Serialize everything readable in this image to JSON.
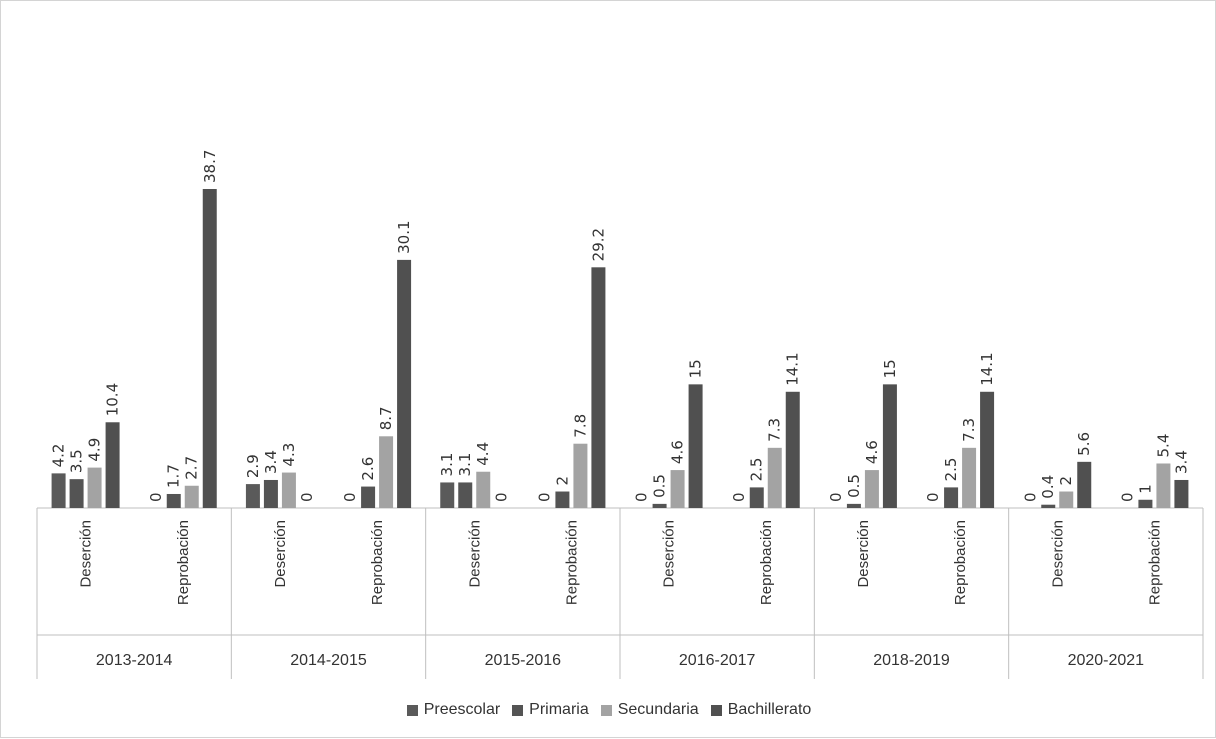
{
  "chart_data": {
    "type": "bar",
    "groups": [
      {
        "year": "2013-2014",
        "categories": [
          "Deserción",
          "Reprobación"
        ]
      },
      {
        "year": "2014-2015",
        "categories": [
          "Deserción",
          "Reprobación"
        ]
      },
      {
        "year": "2015-2016",
        "categories": [
          "Deserción",
          "Reprobación"
        ]
      },
      {
        "year": "2016-2017",
        "categories": [
          "Deserción",
          "Reprobación"
        ]
      },
      {
        "year": "2018-2019",
        "categories": [
          "Deserción",
          "Reprobación"
        ]
      },
      {
        "year": "2020-2021",
        "categories": [
          "Deserción",
          "Reprobación"
        ]
      }
    ],
    "series": [
      {
        "name": "Preescolar",
        "color": "#5a5a5a",
        "values": [
          "4.2",
          "0",
          "2.9",
          "0",
          "3.1",
          "0",
          "0",
          "0",
          "0",
          "0",
          "0",
          "0"
        ]
      },
      {
        "name": "Primaria",
        "color": "#545454",
        "values": [
          "3.5",
          "1.7",
          "3.4",
          "2.6",
          "3.1",
          "2",
          "0.5",
          "2.5",
          "0.5",
          "2.5",
          "0.4",
          "1"
        ]
      },
      {
        "name": "Secundaria",
        "color": "#a3a3a3",
        "values": [
          "4.9",
          "2.7",
          "4.3",
          "8.7",
          "4.4",
          "7.8",
          "4.6",
          "7.3",
          "4.6",
          "7.3",
          "2",
          "5.4"
        ]
      },
      {
        "name": "Bachillerato",
        "color": "#505050",
        "values": [
          "10.4",
          "38.7",
          "0",
          "30.1",
          "0",
          "29.2",
          "15",
          "14.1",
          "15",
          "14.1",
          "5.6",
          "3.4"
        ]
      }
    ],
    "ylim": [
      0,
      40
    ],
    "legend_position": "bottom",
    "data_labels": true,
    "grid": false
  }
}
